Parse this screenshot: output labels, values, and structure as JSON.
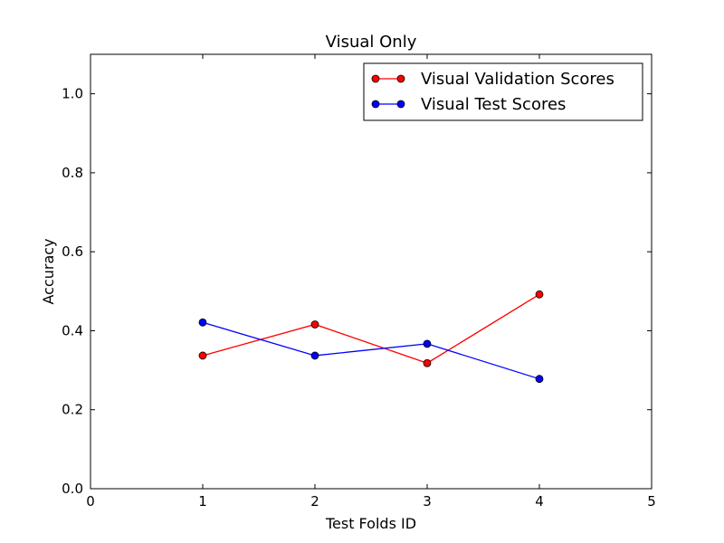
{
  "chart_data": {
    "type": "line",
    "title": "Visual Only",
    "xlabel": "Test Folds ID",
    "ylabel": "Accuracy",
    "xlim": [
      0,
      5
    ],
    "ylim": [
      0.0,
      1.1
    ],
    "xticks": [
      0,
      1,
      2,
      3,
      4,
      5
    ],
    "xtick_labels": [
      "0",
      "1",
      "2",
      "3",
      "4",
      "5"
    ],
    "yticks": [
      0.0,
      0.2,
      0.4,
      0.6,
      0.8,
      1.0
    ],
    "ytick_labels": [
      "0.0",
      "0.2",
      "0.4",
      "0.6",
      "0.8",
      "1.0"
    ],
    "grid": false,
    "legend_position": "top-right",
    "x": [
      1,
      2,
      3,
      4
    ],
    "series": [
      {
        "name": "Visual Validation Scores",
        "color": "#ff0000",
        "marker": "circle",
        "values": [
          0.337,
          0.416,
          0.318,
          0.492
        ]
      },
      {
        "name": "Visual Test Scores",
        "color": "#0000ff",
        "marker": "circle",
        "values": [
          0.421,
          0.337,
          0.367,
          0.278
        ]
      }
    ]
  }
}
